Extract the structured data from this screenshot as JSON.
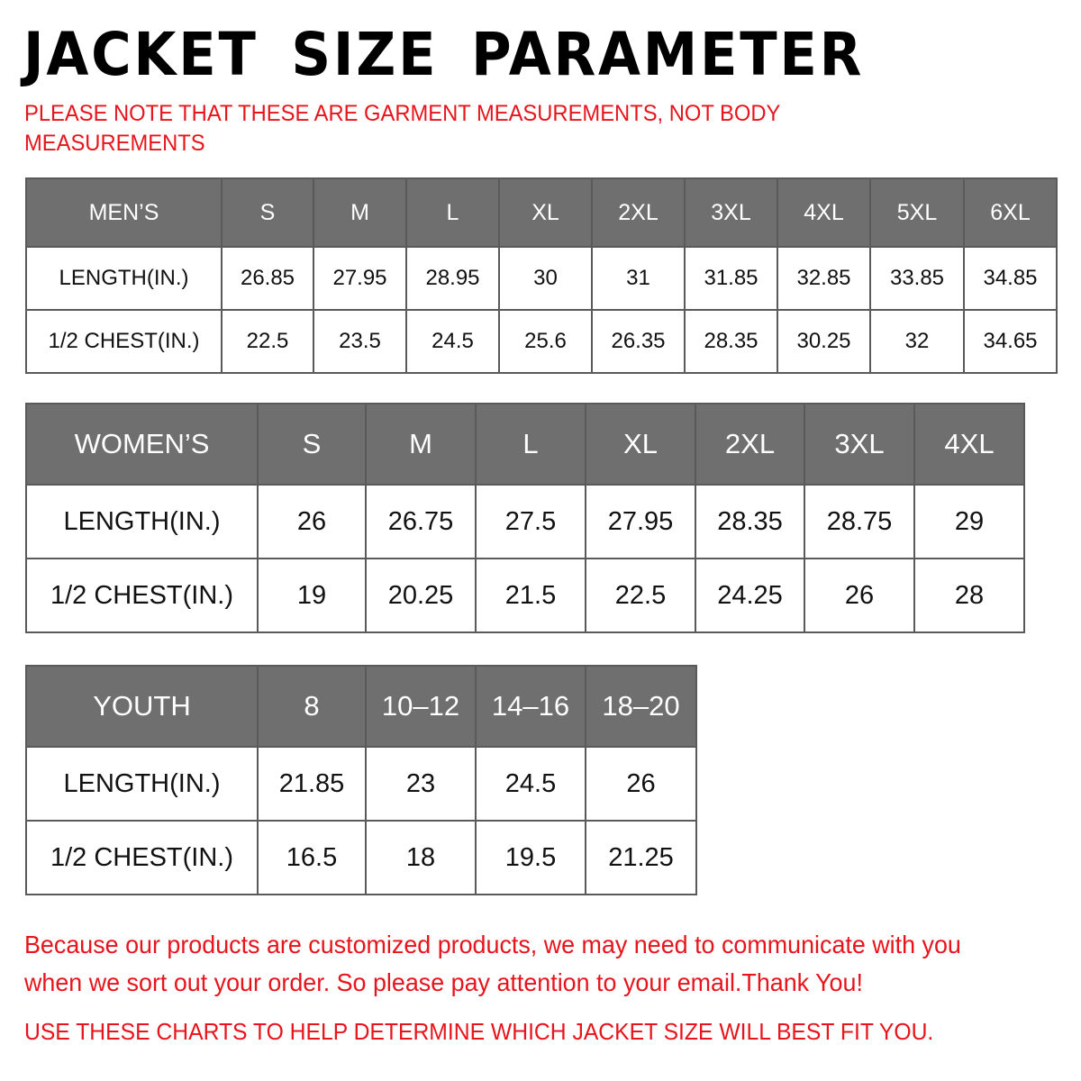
{
  "title": "JACKET SIZE PARAMETER",
  "note": "PLEASE NOTE THAT THESE ARE GARMENT MEASUREMENTS, NOT BODY MEASUREMENTS",
  "colors": {
    "header_bg": "#6f6f6f",
    "accent_red": "#e8141b"
  },
  "tables": {
    "men": {
      "headers": [
        "MEN’S",
        "S",
        "M",
        "L",
        "XL",
        "2XL",
        "3XL",
        "4XL",
        "5XL",
        "6XL"
      ],
      "rows": [
        [
          "LENGTH(IN.)",
          "26.85",
          "27.95",
          "28.95",
          "30",
          "31",
          "31.85",
          "32.85",
          "33.85",
          "34.85"
        ],
        [
          "1/2 CHEST(IN.)",
          "22.5",
          "23.5",
          "24.5",
          "25.6",
          "26.35",
          "28.35",
          "30.25",
          "32",
          "34.65"
        ]
      ]
    },
    "women": {
      "headers": [
        "WOMEN’S",
        "S",
        "M",
        "L",
        "XL",
        "2XL",
        "3XL",
        "4XL"
      ],
      "rows": [
        [
          "LENGTH(IN.)",
          "26",
          "26.75",
          "27.5",
          "27.95",
          "28.35",
          "28.75",
          "29"
        ],
        [
          "1/2 CHEST(IN.)",
          "19",
          "20.25",
          "21.5",
          "22.5",
          "24.25",
          "26",
          "28"
        ]
      ]
    },
    "youth": {
      "headers": [
        "YOUTH",
        "8",
        "10–12",
        "14–16",
        "18–20"
      ],
      "rows": [
        [
          "LENGTH(IN.)",
          "21.85",
          "23",
          "24.5",
          "26"
        ],
        [
          "1/2 CHEST(IN.)",
          "16.5",
          "18",
          "19.5",
          "21.25"
        ]
      ]
    }
  },
  "footer": {
    "message": "Because our products are customized products, we may need to communicate with you when we sort out your order. So please pay attention to your email.Thank You!",
    "tip": "USE THESE CHARTS TO HELP DETERMINE WHICH JACKET SIZE WILL BEST FIT YOU."
  }
}
